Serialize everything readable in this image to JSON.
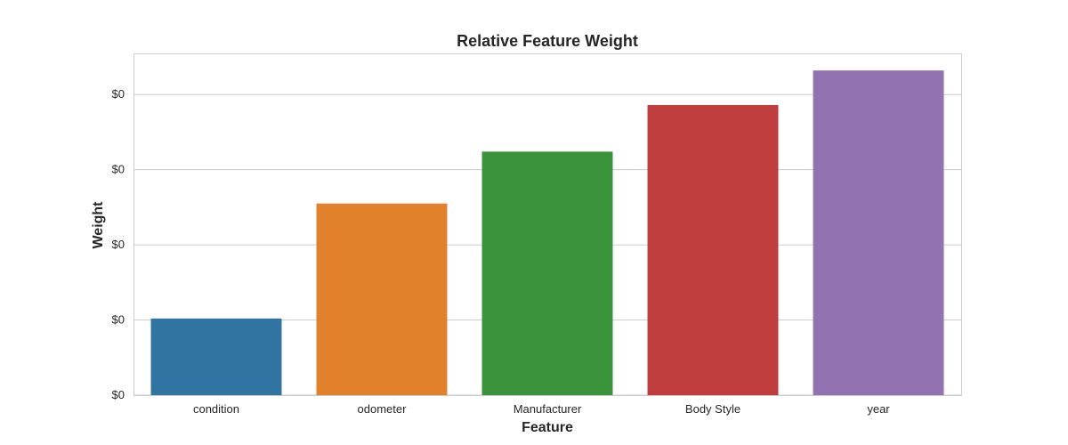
{
  "chart_data": {
    "type": "bar",
    "title": "Relative Feature Weight",
    "xlabel": "Feature",
    "ylabel": "Weight",
    "categories": [
      "condition",
      "odometer",
      "Manufacturer",
      "Body Style",
      "year"
    ],
    "values": [
      0.102,
      0.255,
      0.324,
      0.386,
      0.432
    ],
    "colors": [
      "#3274a1",
      "#e1812c",
      "#3a923a",
      "#c03d3e",
      "#9372b2"
    ],
    "ylim": [
      0,
      0.4547
    ],
    "yticks": [
      0,
      0.1,
      0.2,
      0.3,
      0.4
    ],
    "ytick_labels": [
      "$0",
      "$0",
      "$0",
      "$0",
      "$0"
    ],
    "grid": true,
    "legend": "none"
  }
}
